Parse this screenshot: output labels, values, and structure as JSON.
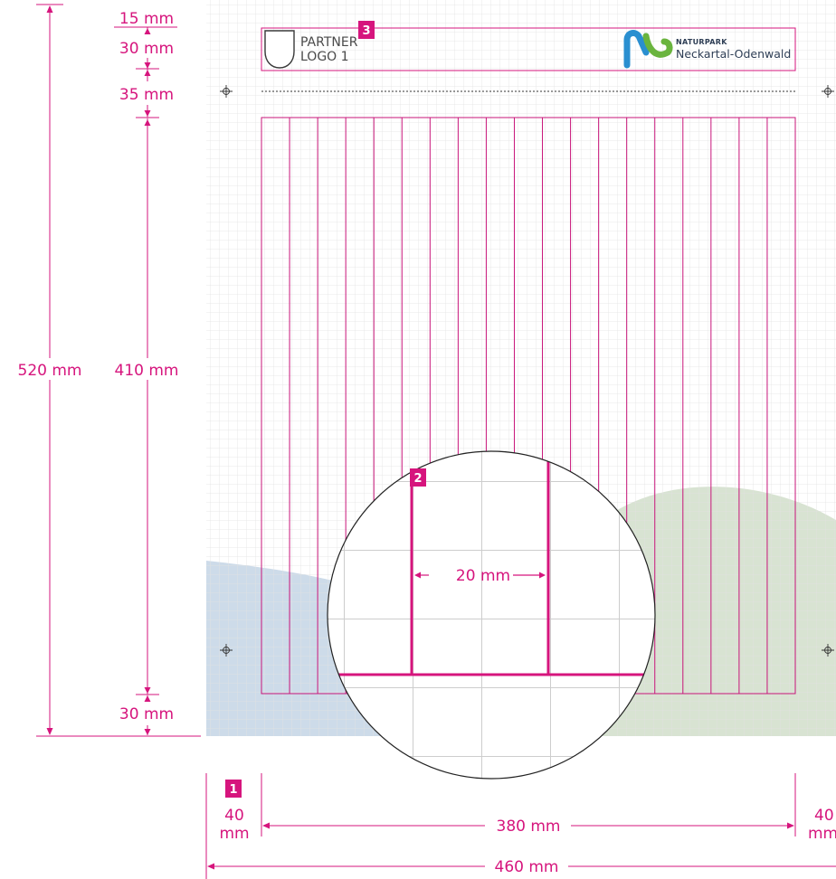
{
  "colors": {
    "accent": "#d6157d",
    "grid": "#e4e4e4",
    "grid_magnified": "#cdcdcd",
    "wave_blue": "#cddbe9",
    "wave_green": "#d8e3d2",
    "logo_text": "#2e3e55",
    "logo_mark_blue": "#2a8fd0",
    "logo_mark_green": "#6ab43e"
  },
  "vertical_dims": {
    "total": "520 mm",
    "top_margin": "15 mm",
    "logo_band": "30 mm",
    "gap": "35 mm",
    "content": "410 mm",
    "bottom_margin": "30 mm"
  },
  "horizontal_dims": {
    "total": "460 mm",
    "content": "380 mm",
    "left_margin_value": "40",
    "left_margin_unit": "mm",
    "right_margin_value": "40",
    "right_margin_unit": "mm"
  },
  "detail": {
    "column_width": "20 mm"
  },
  "badges": {
    "b1": "1",
    "b2": "2",
    "b3": "3"
  },
  "partner_logo": {
    "line1": "PARTNER",
    "line2": "LOGO 1"
  },
  "brand_logo": {
    "line1": "NATURPARK",
    "line2": "Neckartal-Odenwald"
  },
  "icons": {
    "crosshair": "crosshair-icon",
    "shield": "shield-icon",
    "brand_mark": "naturpark-mark-icon"
  }
}
